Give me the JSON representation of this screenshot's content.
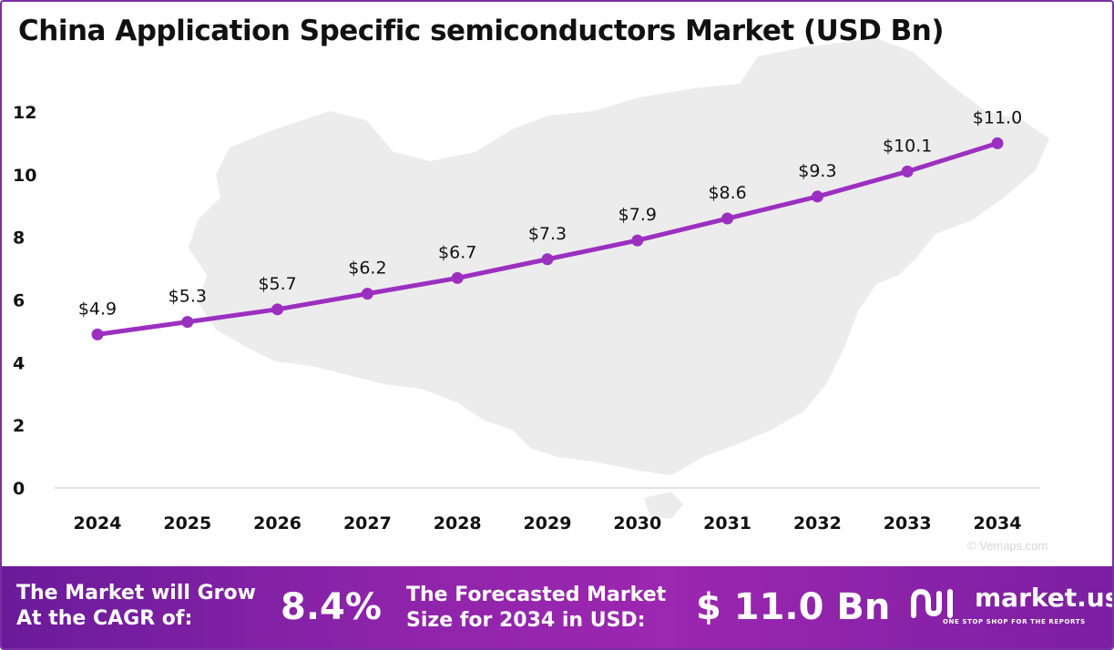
{
  "chart_data": {
    "type": "line",
    "title": "China Application Specific semiconductors Market (USD Bn)",
    "categories": [
      "2024",
      "2025",
      "2026",
      "2027",
      "2028",
      "2029",
      "2030",
      "2031",
      "2032",
      "2033",
      "2034"
    ],
    "values": [
      4.9,
      5.3,
      5.7,
      6.2,
      6.7,
      7.3,
      7.9,
      8.6,
      9.3,
      10.1,
      11.0
    ],
    "data_labels": [
      "$4.9",
      "$5.3",
      "$5.7",
      "$6.2",
      "$6.7",
      "$7.3",
      "$7.9",
      "$8.6",
      "$9.3",
      "$10.1",
      "$11.0"
    ],
    "yticks": [
      "0",
      "2",
      "4",
      "6",
      "8",
      "10",
      "12"
    ],
    "ylim": [
      0,
      12
    ],
    "grid": false,
    "legend": "none",
    "line_color": "#9b30c0"
  },
  "watermark": "© Vemaps.com",
  "footer": {
    "cagr_line1": "The Market will Grow",
    "cagr_line2": "At the CAGR of:",
    "cagr_value": "8.4%",
    "forecast_line1": "The Forecasted Market",
    "forecast_line2": "Size for 2034 in USD:",
    "forecast_value": "$ 11.0 Bn",
    "brand": "market.us",
    "tagline": "ONE STOP SHOP FOR THE REPORTS"
  },
  "colors": {
    "accent": "#9b30c0",
    "footer_start": "#6a1b9a",
    "footer_end": "#9c27b0",
    "map_fill": "#ececec"
  }
}
